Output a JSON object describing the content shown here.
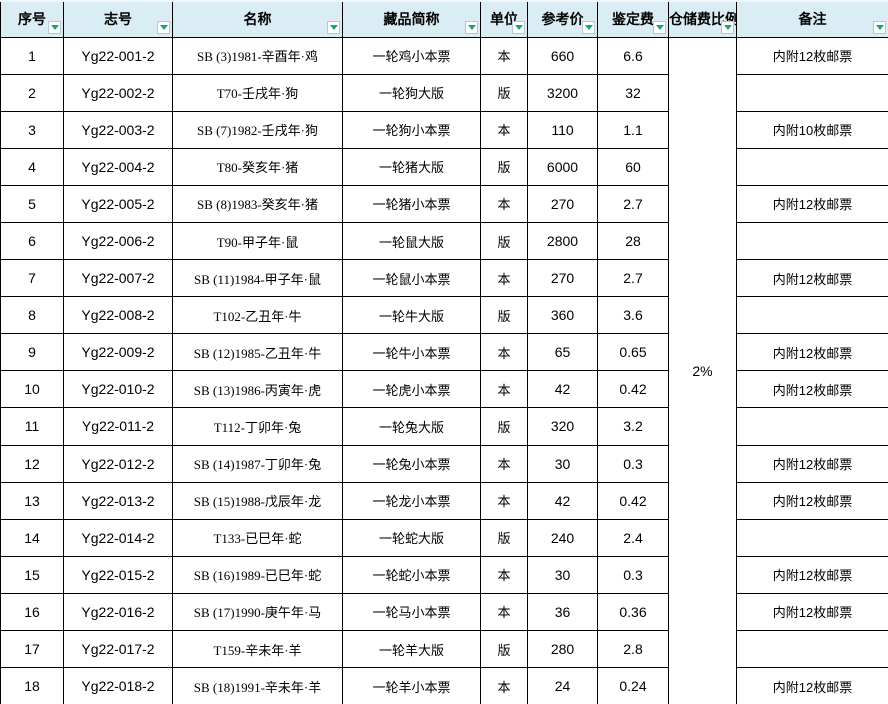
{
  "table": {
    "columns": [
      {
        "key": "no",
        "label": "序号"
      },
      {
        "key": "code",
        "label": "志号"
      },
      {
        "key": "name",
        "label": "名称"
      },
      {
        "key": "short",
        "label": "藏品简称"
      },
      {
        "key": "unit",
        "label": "单位"
      },
      {
        "key": "price",
        "label": "参考价"
      },
      {
        "key": "fee",
        "label": "鉴定费"
      },
      {
        "key": "storage",
        "label": "仓储费比例"
      },
      {
        "key": "note",
        "label": "备注"
      }
    ],
    "storage_fee": "2%",
    "rows": [
      {
        "no": "1",
        "code": "Yg22-001-2",
        "name": "SB (3)1981-辛酉年·鸡",
        "short": "一轮鸡小本票",
        "unit": "本",
        "price": "660",
        "fee": "6.6",
        "note": "内附12枚邮票"
      },
      {
        "no": "2",
        "code": "Yg22-002-2",
        "name": "T70-壬戌年·狗",
        "short": "一轮狗大版",
        "unit": "版",
        "price": "3200",
        "fee": "32",
        "note": ""
      },
      {
        "no": "3",
        "code": "Yg22-003-2",
        "name": "SB (7)1982-壬戌年·狗",
        "short": "一轮狗小本票",
        "unit": "本",
        "price": "110",
        "fee": "1.1",
        "note": "内附10枚邮票"
      },
      {
        "no": "4",
        "code": "Yg22-004-2",
        "name": "T80-癸亥年·猪",
        "short": "一轮猪大版",
        "unit": "版",
        "price": "6000",
        "fee": "60",
        "note": ""
      },
      {
        "no": "5",
        "code": "Yg22-005-2",
        "name": "SB (8)1983-癸亥年·猪",
        "short": "一轮猪小本票",
        "unit": "本",
        "price": "270",
        "fee": "2.7",
        "note": "内附12枚邮票"
      },
      {
        "no": "6",
        "code": "Yg22-006-2",
        "name": "T90-甲子年·鼠",
        "short": "一轮鼠大版",
        "unit": "版",
        "price": "2800",
        "fee": "28",
        "note": ""
      },
      {
        "no": "7",
        "code": "Yg22-007-2",
        "name": "SB (11)1984-甲子年·鼠",
        "short": "一轮鼠小本票",
        "unit": "本",
        "price": "270",
        "fee": "2.7",
        "note": "内附12枚邮票"
      },
      {
        "no": "8",
        "code": "Yg22-008-2",
        "name": "T102-乙丑年·牛",
        "short": "一轮牛大版",
        "unit": "版",
        "price": "360",
        "fee": "3.6",
        "note": ""
      },
      {
        "no": "9",
        "code": "Yg22-009-2",
        "name": "SB (12)1985-乙丑年·牛",
        "short": "一轮牛小本票",
        "unit": "本",
        "price": "65",
        "fee": "0.65",
        "note": "内附12枚邮票"
      },
      {
        "no": "10",
        "code": "Yg22-010-2",
        "name": "SB (13)1986-丙寅年·虎",
        "short": "一轮虎小本票",
        "unit": "本",
        "price": "42",
        "fee": "0.42",
        "note": "内附12枚邮票"
      },
      {
        "no": "11",
        "code": "Yg22-011-2",
        "name": "T112-丁卯年·兔",
        "short": "一轮兔大版",
        "unit": "版",
        "price": "320",
        "fee": "3.2",
        "note": ""
      },
      {
        "no": "12",
        "code": "Yg22-012-2",
        "name": "SB (14)1987-丁卯年·兔",
        "short": "一轮兔小本票",
        "unit": "本",
        "price": "30",
        "fee": "0.3",
        "note": "内附12枚邮票"
      },
      {
        "no": "13",
        "code": "Yg22-013-2",
        "name": "SB (15)1988-戊辰年·龙",
        "short": "一轮龙小本票",
        "unit": "本",
        "price": "42",
        "fee": "0.42",
        "note": "内附12枚邮票"
      },
      {
        "no": "14",
        "code": "Yg22-014-2",
        "name": "T133-已巳年·蛇",
        "short": "一轮蛇大版",
        "unit": "版",
        "price": "240",
        "fee": "2.4",
        "note": ""
      },
      {
        "no": "15",
        "code": "Yg22-015-2",
        "name": "SB (16)1989-已巳年·蛇",
        "short": "一轮蛇小本票",
        "unit": "本",
        "price": "30",
        "fee": "0.3",
        "note": "内附12枚邮票"
      },
      {
        "no": "16",
        "code": "Yg22-016-2",
        "name": "SB (17)1990-庚午年·马",
        "short": "一轮马小本票",
        "unit": "本",
        "price": "36",
        "fee": "0.36",
        "note": "内附12枚邮票"
      },
      {
        "no": "17",
        "code": "Yg22-017-2",
        "name": "T159-辛未年·羊",
        "short": "一轮羊大版",
        "unit": "版",
        "price": "280",
        "fee": "2.8",
        "note": ""
      },
      {
        "no": "18",
        "code": "Yg22-018-2",
        "name": "SB (18)1991-辛未年·羊",
        "short": "一轮羊小本票",
        "unit": "本",
        "price": "24",
        "fee": "0.24",
        "note": "内附12枚邮票"
      }
    ]
  },
  "colors": {
    "header_bg": "#daecf4",
    "filter_arrow": "#17a673",
    "grid_border": "#000000",
    "cell_bg": "#ffffff"
  }
}
